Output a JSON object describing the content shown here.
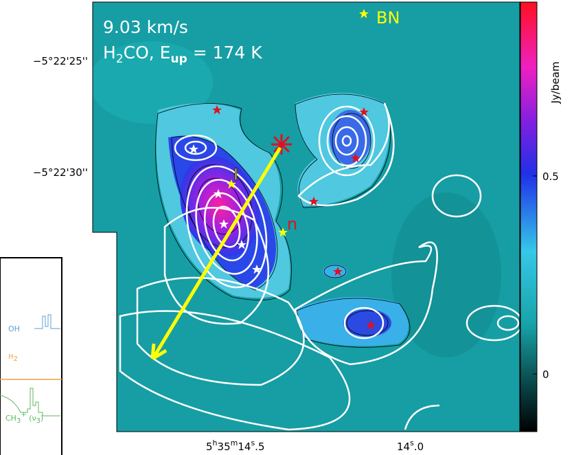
{
  "map": {
    "velocity": "9.03 km/s",
    "line": {
      "species": "H",
      "species_sub": "2",
      "rest": "CO, E",
      "energy_sub": "up",
      "energy": " = 174 K"
    },
    "labels": {
      "bn": "BN",
      "source_i": "I",
      "source_n": "n"
    },
    "y_axis": [
      "−5°22'25''",
      "−5°22'30''"
    ],
    "x_axis": [
      {
        "h": "5",
        "h_unit": "h",
        "m": "35",
        "m_unit": "m",
        "s": "14",
        "s_unit": "s",
        "frac": ".5"
      },
      {
        "s": "14",
        "s_unit": "s",
        "frac": ".0"
      }
    ],
    "colorbar": {
      "unit": "Jy/beam",
      "ticks": [
        "0.5",
        "0"
      ]
    }
  },
  "inset": {
    "lines": [
      "OH",
      "H",
      "2",
      "CH",
      "3",
      "+",
      " (ν",
      "3",
      ")"
    ]
  }
}
